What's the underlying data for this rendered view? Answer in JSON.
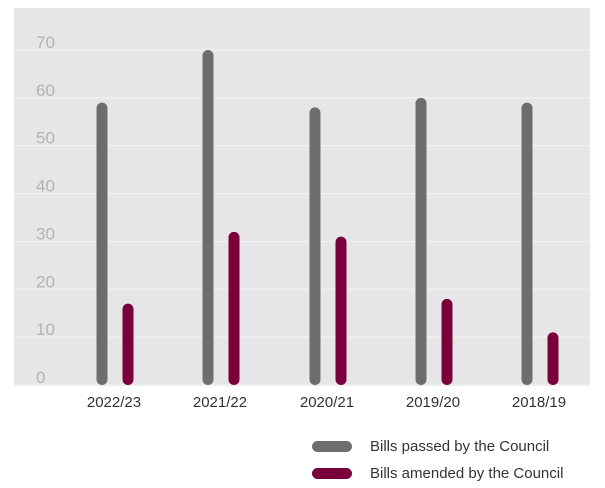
{
  "chart_data": {
    "type": "bar",
    "title": "",
    "xlabel": "",
    "ylabel": "",
    "categories": [
      "2022/23",
      "2021/22",
      "2020/21",
      "2019/20",
      "2018/19"
    ],
    "series": [
      {
        "name": "Bills passed by the Council",
        "color": "#6d6d6f",
        "values": [
          59,
          70,
          58,
          60,
          59
        ]
      },
      {
        "name": "Bills amended by the Council",
        "color": "#7a003c",
        "values": [
          17,
          32,
          31,
          18,
          11
        ]
      }
    ],
    "ylim": [
      0,
      70
    ],
    "yticks": [
      0,
      10,
      20,
      30,
      40,
      50,
      60,
      70
    ],
    "grid": true,
    "legend_position": "bottom-right",
    "background": "#e6e6e8"
  }
}
